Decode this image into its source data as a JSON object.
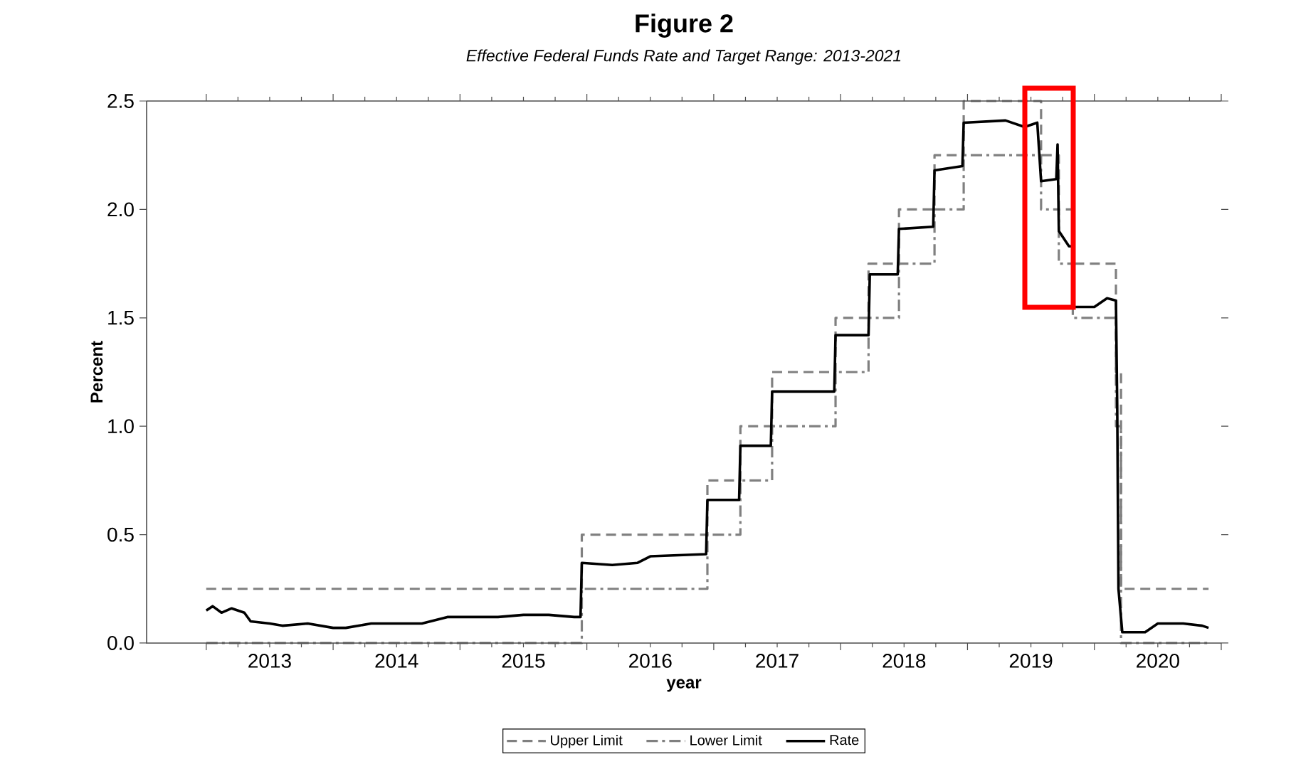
{
  "chart_data": {
    "type": "line",
    "title": "Figure 2",
    "subtitle": "Effective Federal Funds Rate and Target Range: 2013-2021",
    "xlabel": "year",
    "ylabel": "Percent",
    "xlim": [
      2012.53,
      2021.0
    ],
    "ylim": [
      0,
      2.5
    ],
    "xticks": [
      {
        "value": 2013,
        "label": null
      },
      {
        "value": 2014,
        "label": null
      },
      {
        "value": 2015,
        "label": null
      },
      {
        "value": 2016,
        "label": null
      },
      {
        "value": 2017,
        "label": null
      },
      {
        "value": 2018,
        "label": null
      },
      {
        "value": 2019,
        "label": null
      },
      {
        "value": 2020,
        "label": null
      },
      {
        "value": 2021,
        "label": null
      },
      {
        "value": 2013.5,
        "label": "2013"
      },
      {
        "value": 2014.5,
        "label": "2014"
      },
      {
        "value": 2015.5,
        "label": "2015"
      },
      {
        "value": 2016.5,
        "label": "2016"
      },
      {
        "value": 2017.5,
        "label": "2017"
      },
      {
        "value": 2018.5,
        "label": "2018"
      },
      {
        "value": 2019.5,
        "label": "2019"
      },
      {
        "value": 2020.5,
        "label": "2020"
      }
    ],
    "yticks": [
      {
        "value": 0,
        "label": "0.0"
      },
      {
        "value": 0.5,
        "label": "0.5"
      },
      {
        "value": 1,
        "label": "1.0"
      },
      {
        "value": 1.5,
        "label": "1.5"
      },
      {
        "value": 2,
        "label": "2.0"
      },
      {
        "value": 2.5,
        "label": "2.5"
      }
    ],
    "legend": "bottom",
    "grid": false,
    "marker": "none",
    "series": [
      {
        "name": "Upper Limit",
        "type": "step",
        "color": "#808080",
        "line_style": "dashed",
        "x": [
          2013.0,
          2015.96,
          2016.95,
          2017.21,
          2017.46,
          2017.96,
          2018.22,
          2018.46,
          2018.74,
          2018.97,
          2019.58,
          2019.72,
          2019.83,
          2020.17,
          2020.21,
          2020.9
        ],
        "values": [
          0.25,
          0.5,
          0.75,
          1.0,
          1.25,
          1.5,
          1.75,
          2.0,
          2.25,
          2.5,
          2.25,
          2.0,
          1.75,
          1.25,
          0.25,
          0.25
        ]
      },
      {
        "name": "Lower Limit",
        "type": "step",
        "color": "#808080",
        "line_style": "dashdot",
        "x": [
          2013.0,
          2015.96,
          2016.95,
          2017.21,
          2017.46,
          2017.96,
          2018.22,
          2018.46,
          2018.74,
          2018.97,
          2019.58,
          2019.72,
          2019.83,
          2020.17,
          2020.21,
          2020.9
        ],
        "values": [
          0,
          0.25,
          0.5,
          0.75,
          1.0,
          1.25,
          1.5,
          1.75,
          2.0,
          2.25,
          2.0,
          1.75,
          1.5,
          1.0,
          0,
          0
        ]
      },
      {
        "name": "Rate",
        "type": "line",
        "color": "#000000",
        "line_style": "solid",
        "x": [
          2013.0,
          2013.05,
          2013.12,
          2013.2,
          2013.3,
          2013.35,
          2013.5,
          2013.6,
          2013.8,
          2014.0,
          2014.1,
          2014.3,
          2014.5,
          2014.7,
          2014.9,
          2015.0,
          2015.3,
          2015.5,
          2015.7,
          2015.9,
          2015.95,
          2015.96,
          2016.2,
          2016.4,
          2016.5,
          2016.94,
          2016.95,
          2017.2,
          2017.21,
          2017.45,
          2017.46,
          2017.95,
          2017.96,
          2018.22,
          2018.23,
          2018.45,
          2018.46,
          2018.73,
          2018.74,
          2018.96,
          2018.97,
          2019.3,
          2019.45,
          2019.55,
          2019.58,
          2019.7,
          2019.71,
          2019.72,
          2019.8,
          2019.83,
          2019.84,
          2020.0,
          2020.1,
          2020.17,
          2020.18,
          2020.19,
          2020.22,
          2020.4,
          2020.5,
          2020.7,
          2020.85,
          2020.9
        ],
        "values": [
          0.15,
          0.17,
          0.14,
          0.16,
          0.14,
          0.1,
          0.09,
          0.08,
          0.09,
          0.07,
          0.07,
          0.09,
          0.09,
          0.09,
          0.12,
          0.12,
          0.12,
          0.13,
          0.13,
          0.12,
          0.12,
          0.37,
          0.36,
          0.37,
          0.4,
          0.41,
          0.66,
          0.66,
          0.91,
          0.91,
          1.16,
          1.16,
          1.42,
          1.42,
          1.7,
          1.7,
          1.91,
          1.92,
          2.18,
          2.2,
          2.4,
          2.41,
          2.38,
          2.4,
          2.13,
          2.14,
          2.3,
          1.9,
          1.83,
          1.83,
          1.55,
          1.55,
          1.59,
          1.58,
          1.1,
          0.25,
          0.05,
          0.05,
          0.09,
          0.09,
          0.08,
          0.07
        ]
      }
    ]
  }
}
